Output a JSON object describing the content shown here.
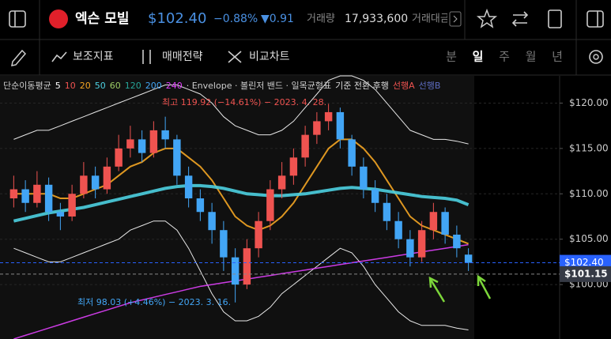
{
  "header": {
    "name": "엑슨 모빌",
    "price": "$102.40",
    "change_pct": "−0.88%",
    "change": "▼0.91",
    "volume_label": "거래량",
    "volume": "17,933,600",
    "amount_label": "거래대금"
  },
  "toolbar": {
    "items": [
      "보조지표",
      "매매전략",
      "비교차트"
    ],
    "periods": [
      "분",
      "일",
      "주",
      "월",
      "년"
    ],
    "active_period_index": 1
  },
  "chart_data": {
    "type": "candlestick",
    "legend": [
      {
        "text": "단순이동평균",
        "color": "#cccccc"
      },
      {
        "text": "5",
        "color": "#ffffff"
      },
      {
        "text": "10",
        "color": "#ef5350"
      },
      {
        "text": "20",
        "color": "#f5a623"
      },
      {
        "text": "50",
        "color": "#4dd0e1"
      },
      {
        "text": "60",
        "color": "#9ccc65"
      },
      {
        "text": "120",
        "color": "#26a69a"
      },
      {
        "text": "200",
        "color": "#42a5f5"
      },
      {
        "text": "240",
        "color": "#e040fb"
      },
      {
        "text": "· Envelope · 볼린저 밴드 · 일목균형표",
        "color": "#cccccc"
      },
      {
        "text": "기준 전환 후행",
        "color": "#dddddd"
      },
      {
        "text": "선행A",
        "color": "#ef5350"
      },
      {
        "text": "선행B",
        "color": "#5c6bc0"
      }
    ],
    "up_color": "#ef5350",
    "down_color": "#42a5f5",
    "open": [
      109.5,
      110.5,
      109,
      111,
      108,
      107.5,
      110,
      112,
      110.5,
      113,
      115,
      116,
      114.5,
      117,
      116,
      112,
      109.5,
      108,
      106,
      103,
      100,
      104,
      107,
      110.5,
      112,
      114,
      116.5,
      118,
      119,
      116,
      113,
      110.5,
      109,
      107,
      105,
      103,
      106,
      108,
      105.5,
      103.3
    ],
    "high": [
      112,
      111.5,
      112.5,
      111.8,
      109,
      111,
      113.5,
      113,
      114,
      116.5,
      117.5,
      117,
      118,
      118.5,
      116.5,
      113,
      110.5,
      109,
      107,
      104,
      105,
      108,
      111.5,
      113.5,
      115,
      117.5,
      119,
      119.92,
      119.5,
      116.5,
      114,
      111.5,
      110,
      108,
      106,
      107,
      109,
      108.5,
      106.5,
      104
    ],
    "low": [
      108.5,
      108,
      108.5,
      107,
      106,
      107,
      109.5,
      109.5,
      110,
      112.5,
      114,
      113.5,
      114,
      115,
      111,
      108.5,
      107,
      104.5,
      101.5,
      98.03,
      99.5,
      103,
      106,
      109.5,
      111,
      113,
      115.5,
      117,
      115,
      112,
      109.5,
      108,
      106,
      104,
      102,
      102.5,
      105,
      104.5,
      103,
      101.5
    ],
    "close": [
      110.5,
      109,
      111,
      108,
      107.5,
      110,
      112,
      110.5,
      113,
      115,
      116,
      114.5,
      117,
      116,
      112,
      109.5,
      108,
      106,
      103,
      100,
      104,
      107,
      110.5,
      112,
      114,
      116.5,
      118,
      119,
      116,
      113,
      110.5,
      109,
      107,
      105,
      103,
      106,
      108,
      105.5,
      104,
      102.4
    ],
    "series": [
      {
        "color": "#ffffff",
        "width": 1,
        "values": [
          116,
          116.5,
          117,
          117,
          117.5,
          118,
          118.5,
          119,
          119.5,
          120,
          120.5,
          121,
          121.5,
          122,
          122,
          121.5,
          121,
          120,
          118.5,
          117.5,
          117,
          116.5,
          116.5,
          117,
          118,
          119.5,
          121,
          122.5,
          123,
          123,
          122.5,
          121.5,
          120,
          118.5,
          117,
          116.5,
          116,
          116,
          115.8,
          115.5
        ]
      },
      {
        "color": "#ffffff",
        "width": 1,
        "values": [
          104,
          103.5,
          103,
          102.5,
          102.5,
          103,
          103.5,
          104,
          104.5,
          105,
          106,
          106.5,
          107,
          107,
          106,
          104,
          101.5,
          99,
          97,
          96,
          96,
          96.5,
          97.5,
          99,
          100,
          101,
          102,
          103,
          104,
          103.5,
          102,
          100,
          98.5,
          97,
          96,
          95.5,
          95.5,
          95.5,
          95.2,
          95
        ]
      },
      {
        "color": "#f5a623",
        "width": 2,
        "values": [
          110,
          110,
          110,
          110,
          109.5,
          109.5,
          110,
          110.5,
          111,
          112,
          113,
          113.5,
          114.5,
          115,
          115,
          114,
          113,
          111.5,
          109.5,
          107.5,
          106.5,
          106,
          106.5,
          107.5,
          109,
          111,
          113,
          115,
          116,
          116,
          115,
          113.5,
          111.5,
          109.5,
          107.5,
          106.5,
          106,
          105.5,
          105,
          104.5
        ]
      },
      {
        "color": "#4dd0e1",
        "width": 4,
        "values": [
          107,
          107.3,
          107.6,
          107.9,
          108.1,
          108.3,
          108.5,
          108.8,
          109.1,
          109.4,
          109.7,
          110,
          110.3,
          110.6,
          110.8,
          110.9,
          110.9,
          110.8,
          110.6,
          110.3,
          110,
          109.9,
          109.8,
          109.8,
          109.9,
          110,
          110.2,
          110.4,
          110.6,
          110.7,
          110.6,
          110.5,
          110.3,
          110.1,
          109.9,
          109.7,
          109.6,
          109.5,
          109.3,
          108.8
        ]
      },
      {
        "color": "#e040fb",
        "width": 1.5,
        "values": [
          94,
          94.4,
          94.8,
          95.2,
          95.6,
          96,
          96.4,
          96.8,
          97.2,
          97.6,
          98,
          98.3,
          98.6,
          98.9,
          99.2,
          99.5,
          99.8,
          100,
          100.2,
          100.4,
          100.6,
          100.8,
          101,
          101.2,
          101.4,
          101.6,
          101.8,
          102,
          102.2,
          102.4,
          102.6,
          102.8,
          103,
          103.2,
          103.4,
          103.6,
          103.8,
          104,
          104.2,
          104.4
        ]
      }
    ],
    "ylim": [
      94,
      123
    ],
    "yticks": [
      {
        "value": 100,
        "label": "$100.00"
      },
      {
        "value": 105,
        "label": "$105.00"
      },
      {
        "value": 110,
        "label": "$110.00"
      },
      {
        "value": 115,
        "label": "$115.00"
      },
      {
        "value": 120,
        "label": "$120.00"
      }
    ],
    "grid": true,
    "current_price": {
      "value": 102.4,
      "label": "$102.40",
      "color": "#2962ff"
    },
    "crosshair": {
      "value": 101.15,
      "label": "$101.15",
      "color": "#363a45"
    },
    "annotations": [
      {
        "text": "최고 119.92 (−14.61%) − 2023. 4. 28.",
        "color": "#ef5350"
      },
      {
        "text": "최저 98.03 (+4.46%) − 2023. 3. 16.",
        "color": "#42a5f5"
      }
    ]
  }
}
